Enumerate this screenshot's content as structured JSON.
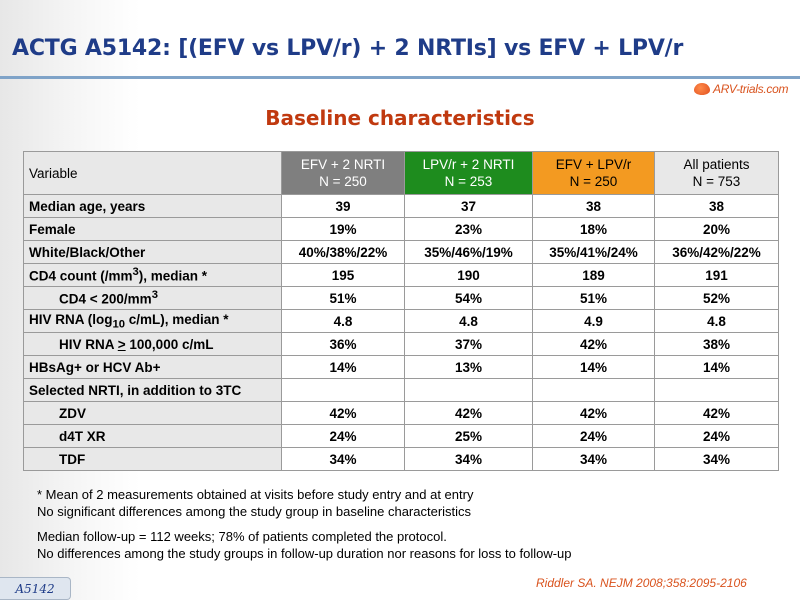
{
  "slide": {
    "title": "ACTG A5142: [(EFV vs LPV/r) + 2 NRTIs] vs EFV + LPV/r",
    "subtitle": "Baseline characteristics",
    "logo_text": "ARV-trials.com",
    "tag": "A5142",
    "reference": "Riddler SA. NEJM 2008;358:2095-2106"
  },
  "colors": {
    "title": "#1f3c88",
    "subtitle": "#c0390f",
    "group_efv": "#7f7f7f",
    "group_lpv": "#1e8c1e",
    "group_combo": "#f39a21"
  },
  "table": {
    "variable_header": "Variable",
    "columns": [
      {
        "name": "EFV + 2 NRTI",
        "n": "N = 250"
      },
      {
        "name": "LPV/r + 2 NRTI",
        "n": "N = 253"
      },
      {
        "name": "EFV + LPV/r",
        "n": "N = 250"
      },
      {
        "name": "All patients",
        "n": "N = 753"
      }
    ],
    "rows": [
      {
        "label": "Median age, years",
        "values": [
          "39",
          "37",
          "38",
          "38"
        ]
      },
      {
        "label": "Female",
        "values": [
          "19%",
          "23%",
          "18%",
          "20%"
        ]
      },
      {
        "label": "White/Black/Other",
        "values": [
          "40%/38%/22%",
          "35%/46%/19%",
          "35%/41%/24%",
          "36%/42%/22%"
        ]
      },
      {
        "label_pre": "CD4 count (/mm",
        "label_sup": "3",
        "label_post": "), median *",
        "values": [
          "195",
          "190",
          "189",
          "191"
        ]
      },
      {
        "label_pre": "CD4 < 200/mm",
        "label_sup": "3",
        "label_post": "",
        "values": [
          "51%",
          "54%",
          "51%",
          "52%"
        ]
      },
      {
        "label_pre": "HIV RNA (log",
        "label_sub": "10",
        "label_post": " c/mL), median *",
        "values": [
          "4.8",
          "4.8",
          "4.9",
          "4.8"
        ]
      },
      {
        "label_pre": "HIV RNA ",
        "label_ge": ">",
        "label_post": " 100,000 c/mL",
        "values": [
          "36%",
          "37%",
          "42%",
          "38%"
        ]
      },
      {
        "label": "HBsAg+ or HCV Ab+",
        "values": [
          "14%",
          "13%",
          "14%",
          "14%"
        ]
      },
      {
        "label": "Selected NRTI, in addition to 3TC",
        "values": [
          "",
          "",
          "",
          ""
        ]
      },
      {
        "label": "ZDV",
        "values": [
          "42%",
          "42%",
          "42%",
          "42%"
        ]
      },
      {
        "label": "d4T XR",
        "values": [
          "24%",
          "25%",
          "24%",
          "24%"
        ]
      },
      {
        "label": "TDF",
        "values": [
          "34%",
          "34%",
          "34%",
          "34%"
        ]
      }
    ]
  },
  "notes": [
    "* Mean of 2 measurements obtained at visits before study entry and at entry",
    "No significant differences among the study group in baseline characteristics",
    "Median follow-up = 112 weeks; 78% of patients completed the protocol.",
    "No differences among the study groups in follow-up duration nor reasons for loss to follow-up"
  ]
}
